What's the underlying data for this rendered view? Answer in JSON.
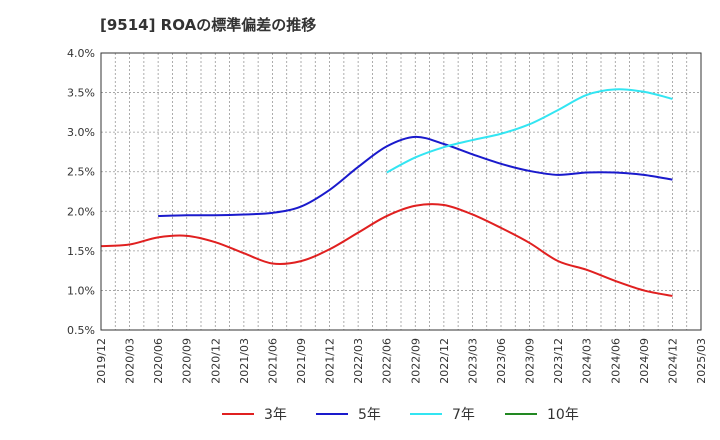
{
  "chart_data": {
    "type": "line",
    "title": "[9514]  ROAの標準偏差の推移",
    "ylim": [
      0.5,
      4.0
    ],
    "yticks": [
      "0.5%",
      "1.0%",
      "1.5%",
      "2.0%",
      "2.5%",
      "3.0%",
      "3.5%",
      "4.0%"
    ],
    "yticks_values": [
      0.5,
      1.0,
      1.5,
      2.0,
      2.5,
      3.0,
      3.5,
      4.0
    ],
    "xticks": [
      "2019/12",
      "2020/03",
      "2020/06",
      "2020/09",
      "2020/12",
      "2021/03",
      "2021/06",
      "2021/09",
      "2021/12",
      "2022/03",
      "2022/06",
      "2022/09",
      "2022/12",
      "2023/03",
      "2023/06",
      "2023/09",
      "2023/12",
      "2024/03",
      "2024/06",
      "2024/09",
      "2024/12",
      "2025/03"
    ],
    "grid": true,
    "legend_position": "bottom",
    "series": [
      {
        "name": "3年",
        "color": "#e02020",
        "values": [
          1.56,
          1.58,
          1.67,
          1.69,
          1.61,
          1.47,
          1.34,
          1.37,
          1.52,
          1.73,
          1.94,
          2.07,
          2.08,
          1.96,
          1.79,
          1.6,
          1.37,
          1.26,
          1.12,
          1.0,
          0.93,
          null
        ]
      },
      {
        "name": "5年",
        "color": "#1a1acc",
        "values": [
          null,
          null,
          1.94,
          1.95,
          1.95,
          1.96,
          1.98,
          2.06,
          2.27,
          2.56,
          2.82,
          2.94,
          2.85,
          2.72,
          2.6,
          2.51,
          2.46,
          2.49,
          2.49,
          2.46,
          2.4,
          null
        ]
      },
      {
        "name": "7年",
        "color": "#33e5f2",
        "values": [
          null,
          null,
          null,
          null,
          null,
          null,
          null,
          null,
          null,
          null,
          2.49,
          2.68,
          2.81,
          2.9,
          2.98,
          3.1,
          3.28,
          3.47,
          3.54,
          3.51,
          3.42,
          null
        ]
      },
      {
        "name": "10年",
        "color": "#228822",
        "values": [
          null,
          null,
          null,
          null,
          null,
          null,
          null,
          null,
          null,
          null,
          null,
          null,
          null,
          null,
          null,
          null,
          null,
          null,
          null,
          null,
          null,
          null
        ]
      }
    ]
  }
}
